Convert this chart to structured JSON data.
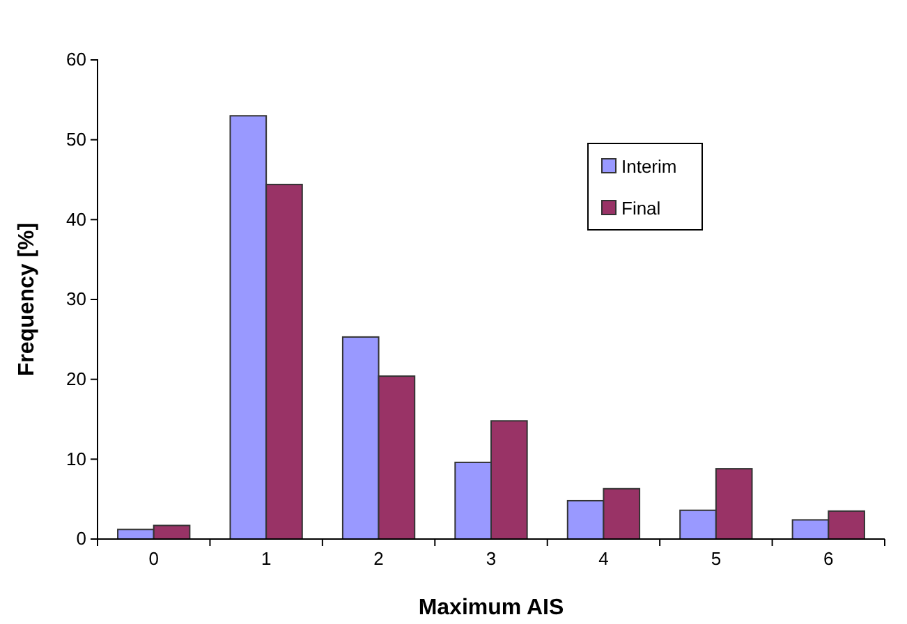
{
  "chart_data": {
    "type": "bar",
    "xlabel": "Maximum AIS",
    "ylabel": "Frequency [%]",
    "categories": [
      "0",
      "1",
      "2",
      "3",
      "4",
      "5",
      "6"
    ],
    "series": [
      {
        "name": "Interim",
        "color": "#9999ff",
        "values": [
          1.2,
          53,
          25.3,
          9.6,
          4.8,
          3.6,
          2.4
        ]
      },
      {
        "name": "Final",
        "color": "#993366",
        "values": [
          1.7,
          44.4,
          20.4,
          14.8,
          6.3,
          8.8,
          3.5
        ]
      }
    ],
    "ylim": [
      0,
      60
    ],
    "yticks": [
      0,
      10,
      20,
      30,
      40,
      50,
      60
    ],
    "grid": false,
    "legend": "top right"
  }
}
